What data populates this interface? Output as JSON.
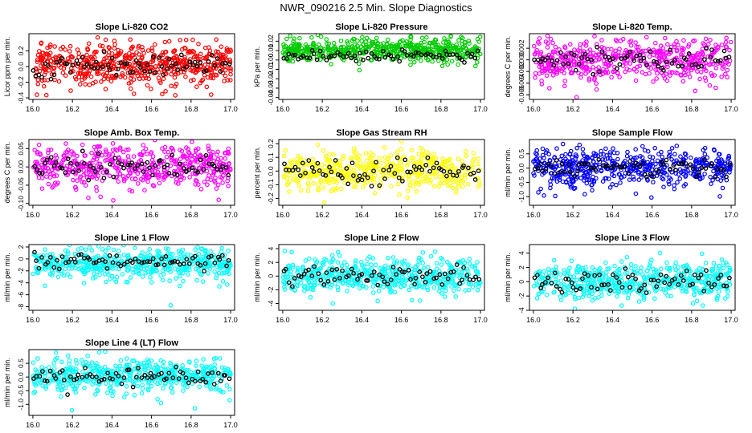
{
  "page_title": "NWR_090216  2.5 Min. Slope Diagnostics",
  "colors": {
    "red": "#ff0000",
    "green": "#00cc00",
    "magenta": "#ff00ff",
    "yellow": "#ffff00",
    "blue": "#0000ff",
    "cyan": "#00ffff",
    "black": "#000000"
  },
  "chart_data": [
    {
      "type": "scatter",
      "title": "Slope Li-820 CO2",
      "ylabel": "Licor ppm per min.",
      "xlim": [
        15.98,
        17.02
      ],
      "ylim": [
        -0.42,
        0.42
      ],
      "xticks": [
        "16.0",
        "16.2",
        "16.4",
        "16.6",
        "16.8",
        "17.0"
      ],
      "yticks": [
        {
          "v": -0.4,
          "t": "-0.4"
        },
        {
          "v": -0.2,
          "t": "-0.2"
        },
        {
          "v": 0,
          "t": "0.0"
        },
        {
          "v": 0.2,
          "t": "0.2"
        }
      ],
      "primary_color": "#ff0000",
      "spread": 0.14,
      "center": 0.04,
      "n": 560,
      "seed": 11
    },
    {
      "type": "scatter",
      "title": "Slope Li-820 Pressure",
      "ylabel": "kPa per min.",
      "xlim": [
        15.98,
        17.02
      ],
      "ylim": [
        -0.042,
        0.028
      ],
      "xticks": [
        "16.0",
        "16.2",
        "16.4",
        "16.6",
        "16.8",
        "17.0"
      ],
      "yticks": [
        {
          "v": -0.04,
          "t": "-0.04"
        },
        {
          "v": -0.03,
          "t": "-0.03"
        },
        {
          "v": -0.02,
          "t": "-0.02"
        },
        {
          "v": -0.01,
          "t": "-0.01"
        },
        {
          "v": 0,
          "t": "0.00"
        },
        {
          "v": 0.01,
          "t": "0.01"
        },
        {
          "v": 0.02,
          "t": "0.02"
        }
      ],
      "primary_color": "#00cc00",
      "spread": 0.006,
      "center": 0.011,
      "n": 560,
      "seed": 23
    },
    {
      "type": "scatter",
      "title": "Slope Li-820 Temp.",
      "ylabel": "degrees C per min.",
      "xlim": [
        15.98,
        17.02
      ],
      "ylim": [
        -0.0068,
        0.0045
      ],
      "xticks": [
        "16.0",
        "16.2",
        "16.4",
        "16.6",
        "16.8",
        "17.0"
      ],
      "yticks": [
        {
          "v": -0.006,
          "t": "-0.006"
        },
        {
          "v": -0.004,
          "t": "-0.004"
        },
        {
          "v": -0.002,
          "t": "-0.002"
        },
        {
          "v": 0,
          "t": "0.000"
        },
        {
          "v": 0.002,
          "t": "0.002"
        }
      ],
      "primary_color": "#ff00ff",
      "spread": 0.0018,
      "center": 0.0,
      "n": 520,
      "seed": 37
    },
    {
      "type": "scatter",
      "title": "Slope Amb. Box Temp.",
      "ylabel": "degrees C per min.",
      "xlim": [
        15.98,
        17.02
      ],
      "ylim": [
        -0.105,
        0.075
      ],
      "xticks": [
        "16.0",
        "16.2",
        "16.4",
        "16.6",
        "16.8",
        "17.0"
      ],
      "yticks": [
        {
          "v": -0.1,
          "t": "-0.10"
        },
        {
          "v": -0.05,
          "t": "-0.05"
        },
        {
          "v": 0,
          "t": "0.00"
        },
        {
          "v": 0.05,
          "t": "0.05"
        }
      ],
      "primary_color": "#ff00ff",
      "spread": 0.028,
      "center": 0.0,
      "n": 520,
      "seed": 41
    },
    {
      "type": "scatter",
      "title": "Slope Gas Stream RH",
      "ylabel": "percent per min.",
      "xlim": [
        15.98,
        17.02
      ],
      "ylim": [
        -0.25,
        0.23
      ],
      "xticks": [
        "16.0",
        "16.2",
        "16.4",
        "16.6",
        "16.8",
        "17.0"
      ],
      "yticks": [
        {
          "v": -0.2,
          "t": "-0.2"
        },
        {
          "v": -0.1,
          "t": "-0.1"
        },
        {
          "v": 0,
          "t": "0.0"
        },
        {
          "v": 0.1,
          "t": "0.1"
        },
        {
          "v": 0.2,
          "t": "0.2"
        }
      ],
      "primary_color": "#ffff00",
      "spread": 0.07,
      "center": 0.0,
      "n": 480,
      "seed": 53
    },
    {
      "type": "scatter",
      "title": "Slope Sample Flow",
      "ylabel": "ml/min per min.",
      "xlim": [
        15.98,
        17.02
      ],
      "ylim": [
        -1.3,
        1.0
      ],
      "xticks": [
        "16.0",
        "16.2",
        "16.4",
        "16.6",
        "16.8",
        "17.0"
      ],
      "yticks": [
        {
          "v": -1,
          "t": "-1.0"
        },
        {
          "v": -0.5,
          "t": "-0.5"
        },
        {
          "v": 0,
          "t": "0.0"
        },
        {
          "v": 0.5,
          "t": "0.5"
        }
      ],
      "primary_color": "#0000ff",
      "spread": 0.3,
      "center": 0.0,
      "n": 520,
      "seed": 67
    },
    {
      "type": "scatter",
      "title": "Slope Line 1 Flow",
      "ylabel": "ml/min per min.",
      "xlim": [
        15.98,
        17.02
      ],
      "ylim": [
        -8.6,
        2.4
      ],
      "xticks": [
        "16.0",
        "16.2",
        "16.4",
        "16.6",
        "16.8",
        "17.0"
      ],
      "yticks": [
        {
          "v": -8,
          "t": "-8"
        },
        {
          "v": -6,
          "t": "-6"
        },
        {
          "v": -4,
          "t": "-4"
        },
        {
          "v": -2,
          "t": "-2"
        },
        {
          "v": 0,
          "t": "0"
        },
        {
          "v": 2,
          "t": "2"
        }
      ],
      "primary_color": "#00ffff",
      "spread": 1.2,
      "center": -0.8,
      "n": 520,
      "seed": 71
    },
    {
      "type": "scatter",
      "title": "Slope Line 2 Flow",
      "ylabel": "ml/min per min.",
      "xlim": [
        15.98,
        17.02
      ],
      "ylim": [
        -5.0,
        4.6
      ],
      "xticks": [
        "16.0",
        "16.2",
        "16.4",
        "16.6",
        "16.8",
        "17.0"
      ],
      "yticks": [
        {
          "v": -4,
          "t": "-4"
        },
        {
          "v": -2,
          "t": "-2"
        },
        {
          "v": 0,
          "t": "0"
        },
        {
          "v": 2,
          "t": "2"
        },
        {
          "v": 4,
          "t": "4"
        }
      ],
      "primary_color": "#00ffff",
      "spread": 1.2,
      "center": 0.0,
      "n": 520,
      "seed": 83
    },
    {
      "type": "scatter",
      "title": "Slope Line 3 Flow",
      "ylabel": "ml/min per min.",
      "xlim": [
        15.98,
        17.02
      ],
      "ylim": [
        -4.0,
        5.2
      ],
      "xticks": [
        "16.0",
        "16.2",
        "16.4",
        "16.6",
        "16.8",
        "17.0"
      ],
      "yticks": [
        {
          "v": -4,
          "t": "-4"
        },
        {
          "v": -2,
          "t": "-2"
        },
        {
          "v": 0,
          "t": "0"
        },
        {
          "v": 2,
          "t": "2"
        },
        {
          "v": 4,
          "t": "4"
        }
      ],
      "primary_color": "#00ffff",
      "spread": 1.3,
      "center": 0.0,
      "n": 520,
      "seed": 97
    },
    {
      "type": "scatter",
      "title": "Slope Line 4 (LT) Flow",
      "ylabel": "ml/min per min.",
      "xlim": [
        15.98,
        17.02
      ],
      "ylim": [
        -1.4,
        1.0
      ],
      "xticks": [
        "16.0",
        "16.2",
        "16.4",
        "16.6",
        "16.8",
        "17.0"
      ],
      "yticks": [
        {
          "v": -1,
          "t": "-1.0"
        },
        {
          "v": -0.5,
          "t": "-0.5"
        },
        {
          "v": 0,
          "t": "0.0"
        },
        {
          "v": 0.5,
          "t": "0.5"
        }
      ],
      "primary_color": "#00ffff",
      "spread": 0.28,
      "center": 0.05,
      "n": 520,
      "seed": 101
    }
  ]
}
